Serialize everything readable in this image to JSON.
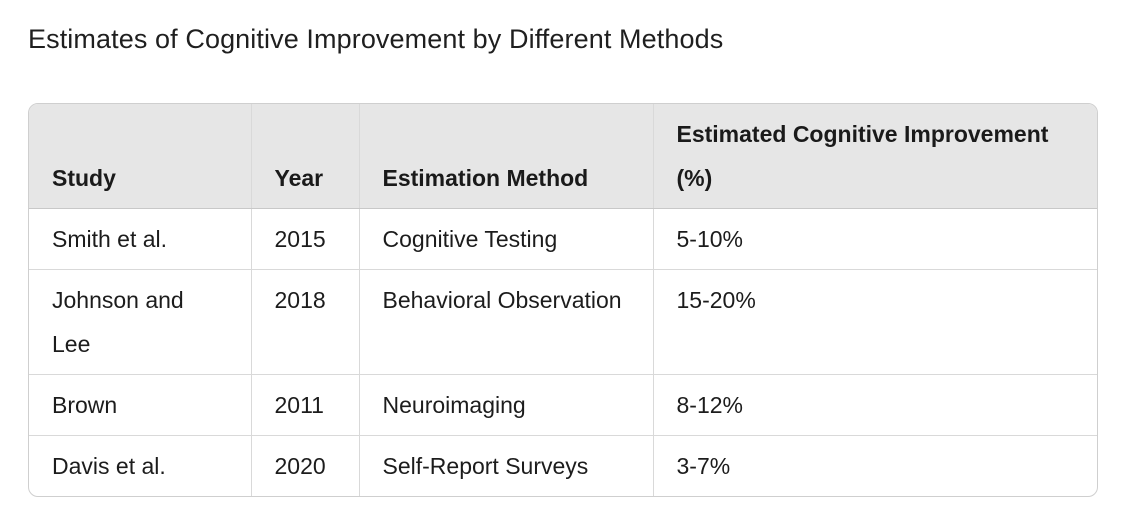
{
  "caption": "Estimates of Cognitive Improvement by Different Methods",
  "table": {
    "headers": [
      "Study",
      "Year",
      "Estimation Method",
      "Estimated Cognitive Improvement (%)"
    ],
    "rows": [
      [
        "Smith et al.",
        "2015",
        "Cognitive Testing",
        "5-10%"
      ],
      [
        "Johnson and Lee",
        "2018",
        "Behavioral Observation",
        "15-20%"
      ],
      [
        "Brown",
        "2011",
        "Neuroimaging",
        "8-12%"
      ],
      [
        "Davis et al.",
        "2020",
        "Self-Report Surveys",
        "3-7%"
      ]
    ]
  }
}
